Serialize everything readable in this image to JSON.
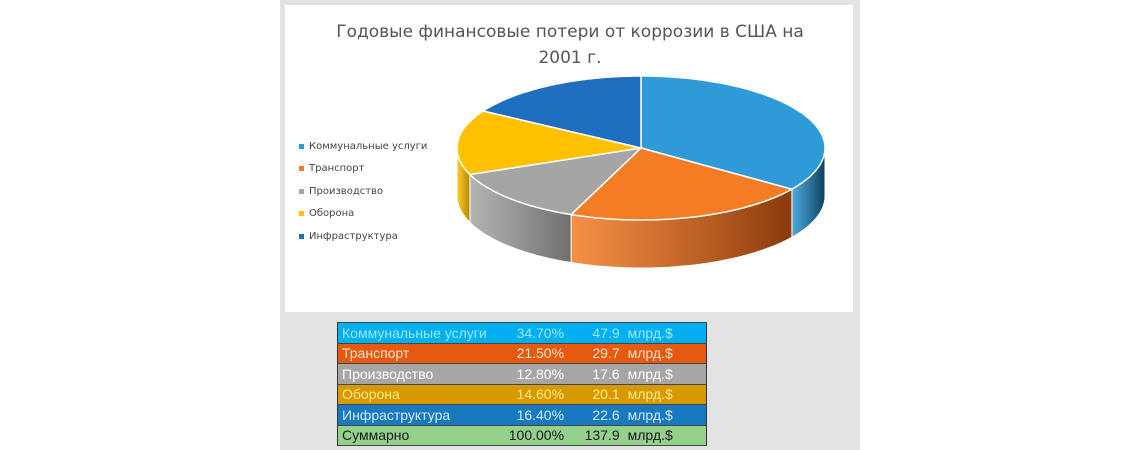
{
  "chart_data": {
    "type": "pie",
    "title": "Годовые финансовые потери от коррозии в США на 2001 г.",
    "title_lines": [
      "Годовые финансовые потери от коррозии в США на",
      "2001 г."
    ],
    "style": "3d",
    "legend_position": "left",
    "categories": [
      "Коммунальные услуги",
      "Транспорт",
      "Производство",
      "Оборона",
      "Инфраструктура"
    ],
    "values": [
      34.7,
      21.5,
      12.8,
      14.6,
      16.4
    ],
    "colors": [
      "#2e9bd8",
      "#f47c24",
      "#a5a5a5",
      "#ffc000",
      "#1f6fc0"
    ],
    "side_colors": [
      "#0e3f5e",
      "#8a3a0c",
      "#6f6f6f",
      "#b38600",
      "#154b82"
    ]
  },
  "table": {
    "rows": [
      {
        "name": "Коммунальные услуги",
        "percent": "34.70%",
        "value": "47.9",
        "unit": "млрд.$",
        "bg": "#00b0f0",
        "fg": "#9fe6ff"
      },
      {
        "name": "Транспорт",
        "percent": "21.50%",
        "value": "29.7",
        "unit": "млрд.$",
        "bg": "#e55a0e",
        "fg": "#fde3cf"
      },
      {
        "name": "Производство",
        "percent": "12.80%",
        "value": "17.6",
        "unit": "млрд.$",
        "bg": "#a6a6a6",
        "fg": "#ffffff"
      },
      {
        "name": "Оборона",
        "percent": "14.60%",
        "value": "20.1",
        "unit": "млрд.$",
        "bg": "#d69a00",
        "fg": "#ffe98a"
      },
      {
        "name": "Инфраструктура",
        "percent": "16.40%",
        "value": "22.6",
        "unit": "млрд.$",
        "bg": "#1878c0",
        "fg": "#cfeaff"
      },
      {
        "name": "Суммарно",
        "percent": "100.00%",
        "value": "137.9",
        "unit": "млрд.$",
        "bg": "#94d18c",
        "fg": "#1a1a1a"
      }
    ]
  }
}
